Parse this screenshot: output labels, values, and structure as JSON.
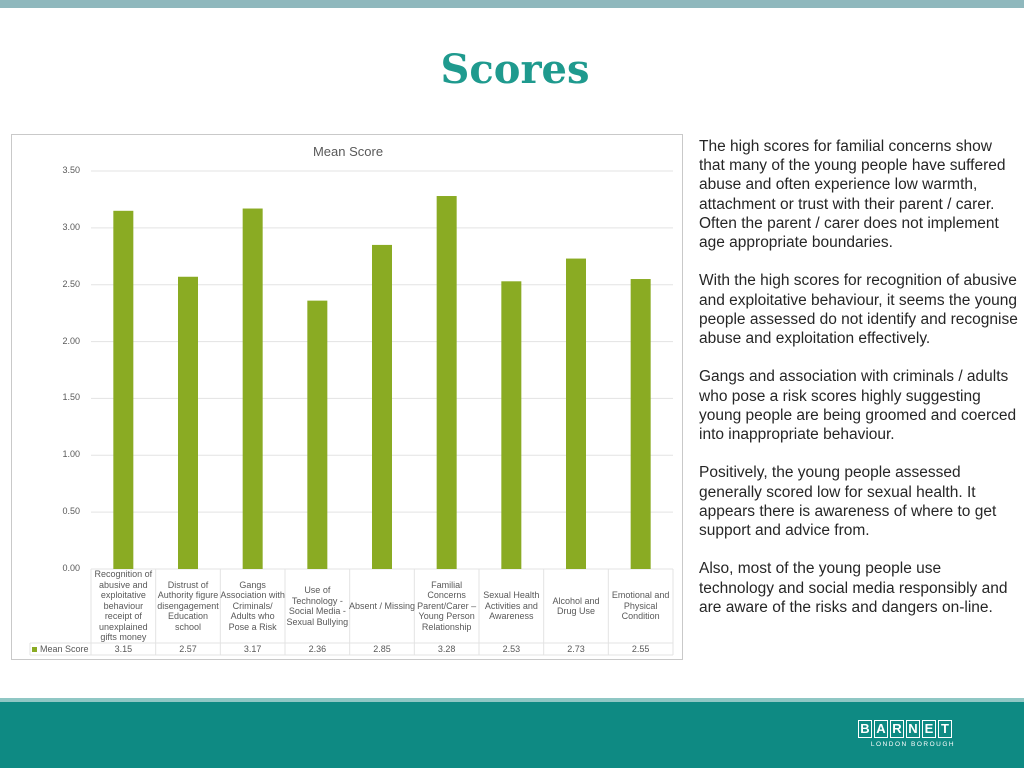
{
  "slide": {
    "title": "Scores"
  },
  "chart_data": {
    "type": "bar",
    "title": "Mean Score",
    "categories": [
      "Recognition of abusive and exploitative behaviour receipt of unexplained gifts money",
      "Distrust of Authority figure disengagement Education school",
      "Gangs Association with Criminals/ Adults who Pose a Risk",
      "Use of Technology - Social Media - Sexual Bullying",
      "Absent / Missing",
      "Familial Concerns Parent/Carer – Young Person Relationship",
      "Sexual Health Activities and Awareness",
      "Alcohol and Drug Use",
      "Emotional and Physical Condition"
    ],
    "series": [
      {
        "name": "Mean Score",
        "values": [
          3.15,
          2.57,
          3.17,
          2.36,
          2.85,
          3.28,
          2.53,
          2.73,
          2.55
        ],
        "value_labels": [
          "3.15",
          "2.57",
          "3.17",
          "2.36",
          "2.85",
          "3.28",
          "2.53",
          "2.73",
          "2.55"
        ],
        "color": "#8aab23"
      }
    ],
    "ylim": [
      0,
      3.5
    ],
    "yticks": [
      "0.00",
      "0.50",
      "1.00",
      "1.50",
      "2.00",
      "2.50",
      "3.00",
      "3.50"
    ],
    "grid": true,
    "data_table": true
  },
  "side": {
    "paragraphs": [
      "The high scores for familial concerns show that many of the young people have suffered abuse and often experience low warmth, attachment or trust with their parent / carer. Often the parent / carer does not implement age appropriate boundaries.",
      "With the high scores for recognition of abusive and exploitative behaviour, it seems the young people assessed do not identify and recognise abuse and exploitation effectively.",
      "Gangs and association with criminals / adults who pose a risk scores highly suggesting young people are being groomed and coerced into inappropriate behaviour.",
      "Positively, the young people assessed generally scored low for sexual health.  It appears there is awareness of where to get support and advice from.",
      "Also, most of the young people use technology and social media responsibly and are aware of the risks and dangers on-line."
    ]
  },
  "logo": {
    "letters": [
      "B",
      "A",
      "R",
      "N",
      "E",
      "T"
    ],
    "subtitle": "LONDON BOROUGH"
  },
  "colors": {
    "title": "#1f9a8e",
    "band": "#0e8a83",
    "bar": "#8aab23"
  }
}
